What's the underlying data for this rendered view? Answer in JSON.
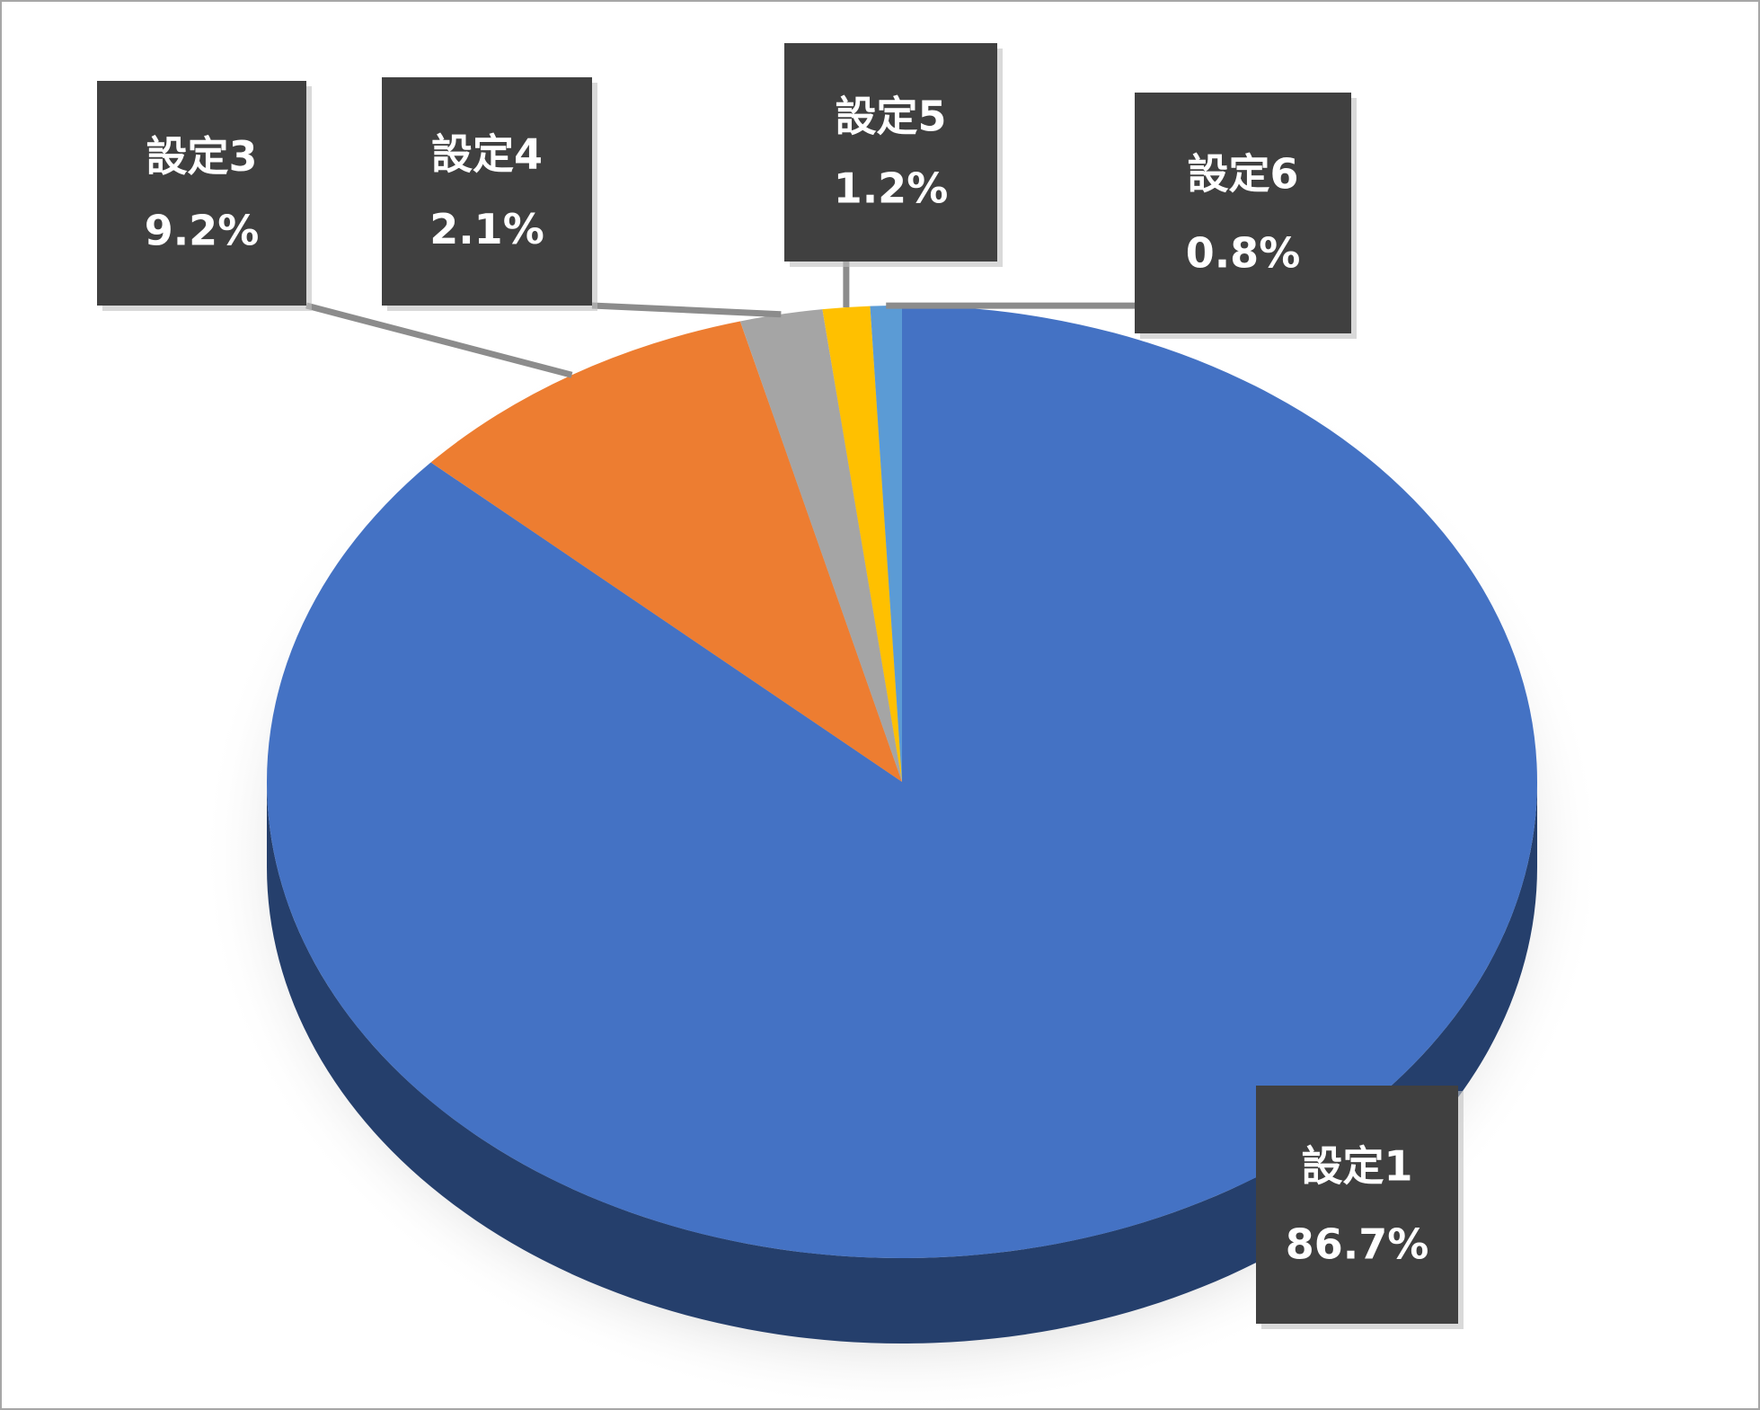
{
  "chart_data": {
    "type": "pie",
    "categories": [
      "設定1",
      "設定3",
      "設定4",
      "設定5",
      "設定6"
    ],
    "values": [
      86.7,
      9.2,
      2.1,
      1.2,
      0.8
    ],
    "value_labels": [
      "86.7%",
      "9.2%",
      "2.1%",
      "1.2%",
      "0.8%"
    ],
    "colors": [
      "#4472c4",
      "#ed7d31",
      "#a5a5a5",
      "#ffc000",
      "#5b9bd5"
    ]
  }
}
